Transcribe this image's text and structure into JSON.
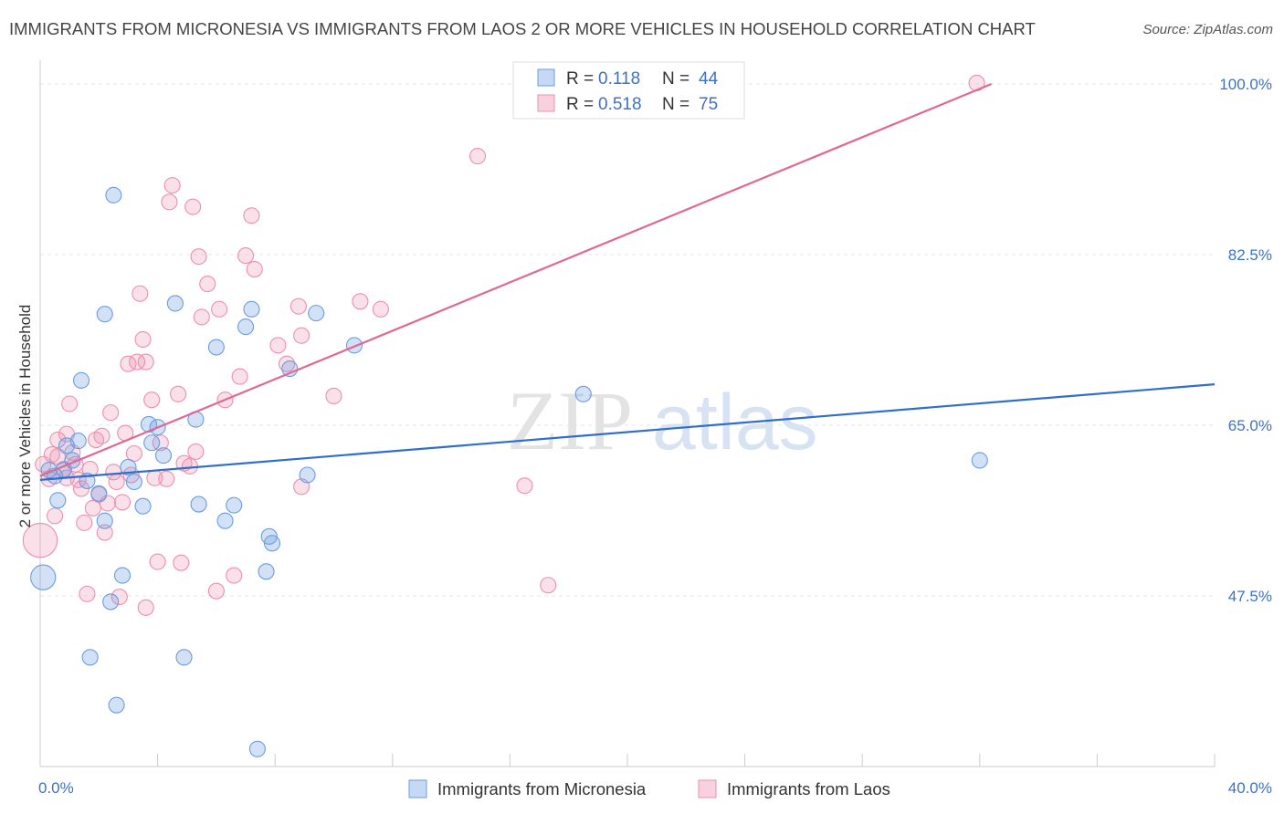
{
  "title": "IMMIGRANTS FROM MICRONESIA VS IMMIGRANTS FROM LAOS 2 OR MORE VEHICLES IN HOUSEHOLD CORRELATION CHART",
  "source": "Source: ZipAtlas.com",
  "watermark": {
    "zip": "ZIP",
    "atlas": "atlas"
  },
  "colors": {
    "micronesia": "#6a9de0",
    "micronesia_line": "#2f6fcb",
    "laos": "#ee8fb0",
    "laos_line": "#e06892",
    "tick": "#3d72c4"
  },
  "legend": {
    "r_label": "R =",
    "n_label": "N =",
    "rows": [
      {
        "r": "0.118",
        "n": "44"
      },
      {
        "r": "0.518",
        "n": "75"
      }
    ]
  },
  "bottom_legend": [
    "Immigrants from Micronesia",
    "Immigrants from Laos"
  ],
  "chart_data": {
    "type": "scatter",
    "ylabel": "2 or more Vehicles in Household",
    "xlim": [
      0,
      40
    ],
    "ylim": [
      30,
      101.5
    ],
    "x_tick_labels": [
      "0.0%",
      "40.0%"
    ],
    "y_ticks": [
      47.5,
      65.0,
      82.5,
      100.0
    ],
    "y_tick_labels": [
      "47.5%",
      "65.0%",
      "82.5%",
      "100.0%"
    ],
    "grid": true,
    "series": [
      {
        "name": "Immigrants from Micronesia",
        "trend": [
          [
            0,
            59.4
          ],
          [
            40,
            69.2
          ]
        ],
        "points": [
          [
            0.1,
            49.4,
            1.6
          ],
          [
            0.3,
            60.4,
            1
          ],
          [
            0.5,
            59.8,
            1
          ],
          [
            0.6,
            57.3,
            1
          ],
          [
            0.8,
            60.4,
            1
          ],
          [
            0.9,
            62.9,
            1
          ],
          [
            1.1,
            61.4,
            1
          ],
          [
            1.3,
            63.4,
            1
          ],
          [
            1.4,
            69.6,
            1
          ],
          [
            1.6,
            59.3,
            1
          ],
          [
            2.0,
            58.0,
            1
          ],
          [
            2.2,
            76.4,
            1
          ],
          [
            2.2,
            55.2,
            1
          ],
          [
            2.4,
            46.9,
            1
          ],
          [
            2.5,
            88.6,
            1
          ],
          [
            2.8,
            49.6,
            1
          ],
          [
            3.0,
            60.7,
            1
          ],
          [
            3.2,
            59.2,
            1
          ],
          [
            3.5,
            56.7,
            1
          ],
          [
            3.7,
            65.1,
            1
          ],
          [
            3.8,
            63.2,
            1
          ],
          [
            4.0,
            64.8,
            1
          ],
          [
            4.2,
            61.9,
            1
          ],
          [
            4.6,
            77.5,
            1
          ],
          [
            5.3,
            65.6,
            1
          ],
          [
            5.4,
            56.9,
            1
          ],
          [
            6.0,
            73.0,
            1
          ],
          [
            6.3,
            55.2,
            1
          ],
          [
            6.6,
            56.8,
            1
          ],
          [
            7.0,
            75.1,
            1
          ],
          [
            7.2,
            76.9,
            1
          ],
          [
            7.7,
            50.0,
            1
          ],
          [
            7.8,
            53.6,
            1
          ],
          [
            7.9,
            52.9,
            1
          ],
          [
            8.5,
            70.8,
            1
          ],
          [
            9.1,
            59.9,
            1
          ],
          [
            9.4,
            76.5,
            1
          ],
          [
            10.7,
            73.2,
            1
          ],
          [
            18.5,
            68.2,
            1
          ],
          [
            32.0,
            61.4,
            1
          ],
          [
            1.7,
            41.2,
            1
          ],
          [
            4.9,
            41.2,
            1
          ],
          [
            2.6,
            36.3,
            1
          ],
          [
            7.4,
            31.8,
            1
          ]
        ]
      },
      {
        "name": "Immigrants from Laos",
        "trend": [
          [
            0,
            59.8
          ],
          [
            32.4,
            100
          ]
        ],
        "points": [
          [
            0.0,
            53.2,
            2.2
          ],
          [
            0.1,
            61.0,
            1
          ],
          [
            0.3,
            59.5,
            1
          ],
          [
            0.4,
            62.0,
            1
          ],
          [
            0.5,
            55.7,
            1
          ],
          [
            0.6,
            63.5,
            1
          ],
          [
            0.8,
            60.5,
            1
          ],
          [
            0.9,
            59.6,
            1
          ],
          [
            0.9,
            64.1,
            1
          ],
          [
            1.0,
            67.2,
            1
          ],
          [
            1.1,
            62.2,
            1
          ],
          [
            1.2,
            61.0,
            1
          ],
          [
            1.3,
            59.4,
            1
          ],
          [
            1.4,
            58.5,
            1
          ],
          [
            1.5,
            55.0,
            1
          ],
          [
            1.6,
            47.7,
            1
          ],
          [
            1.7,
            60.5,
            1
          ],
          [
            1.8,
            56.5,
            1
          ],
          [
            1.9,
            63.5,
            1
          ],
          [
            2.0,
            57.9,
            1
          ],
          [
            2.1,
            63.9,
            1
          ],
          [
            2.2,
            54.0,
            1
          ],
          [
            2.3,
            57.0,
            1
          ],
          [
            2.4,
            66.3,
            1
          ],
          [
            2.5,
            60.2,
            1
          ],
          [
            2.6,
            59.2,
            1
          ],
          [
            2.7,
            47.4,
            1
          ],
          [
            2.8,
            57.1,
            1
          ],
          [
            2.9,
            64.2,
            1
          ],
          [
            3.0,
            71.3,
            1
          ],
          [
            3.1,
            59.9,
            1
          ],
          [
            3.2,
            62.1,
            1
          ],
          [
            3.3,
            71.5,
            1
          ],
          [
            3.4,
            78.5,
            1
          ],
          [
            3.5,
            73.8,
            1
          ],
          [
            3.6,
            71.5,
            1
          ],
          [
            3.6,
            46.3,
            1
          ],
          [
            3.8,
            67.6,
            1
          ],
          [
            3.9,
            59.6,
            1
          ],
          [
            4.0,
            51.0,
            1
          ],
          [
            4.1,
            63.2,
            1
          ],
          [
            4.3,
            59.5,
            1
          ],
          [
            4.4,
            87.9,
            1
          ],
          [
            4.5,
            89.6,
            1
          ],
          [
            4.7,
            68.2,
            1
          ],
          [
            4.9,
            61.1,
            1
          ],
          [
            4.8,
            50.9,
            1
          ],
          [
            5.1,
            60.8,
            1
          ],
          [
            5.2,
            87.4,
            1
          ],
          [
            5.3,
            62.3,
            1
          ],
          [
            5.4,
            82.3,
            1
          ],
          [
            5.5,
            76.1,
            1
          ],
          [
            5.7,
            79.5,
            1
          ],
          [
            6.0,
            48.0,
            1
          ],
          [
            6.1,
            76.9,
            1
          ],
          [
            6.3,
            67.6,
            1
          ],
          [
            6.6,
            49.6,
            1
          ],
          [
            6.8,
            70.0,
            1
          ],
          [
            7.0,
            82.4,
            1
          ],
          [
            7.2,
            86.5,
            1
          ],
          [
            7.3,
            81.0,
            1
          ],
          [
            8.1,
            73.2,
            1
          ],
          [
            8.4,
            71.3,
            1
          ],
          [
            8.8,
            77.2,
            1
          ],
          [
            8.9,
            74.2,
            1
          ],
          [
            8.9,
            58.7,
            1
          ],
          [
            10.0,
            68.0,
            1
          ],
          [
            10.9,
            77.7,
            1
          ],
          [
            11.6,
            76.9,
            1
          ],
          [
            14.9,
            92.6,
            1
          ],
          [
            16.5,
            58.8,
            1
          ],
          [
            17.3,
            48.6,
            1
          ],
          [
            19.2,
            100.1,
            1
          ],
          [
            31.9,
            100.1,
            1
          ],
          [
            0.6,
            61.8,
            1
          ]
        ]
      }
    ]
  }
}
